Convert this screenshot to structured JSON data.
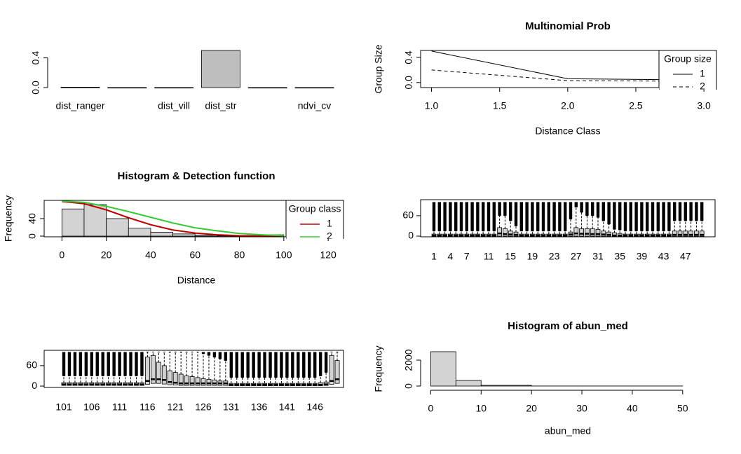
{
  "chart_data": [
    {
      "type": "bar",
      "categories": [
        "dist_ranger",
        null,
        "dist_vill",
        "dist_str",
        null,
        "ndvi_cv"
      ],
      "values": [
        0.005,
        0.001,
        0.001,
        0.5,
        0.001,
        0.001
      ],
      "color": "#bebebe",
      "ylim": [
        0,
        0.5
      ],
      "yticks": [
        {
          "value": 0,
          "label": "0.0"
        },
        {
          "value": 0.4,
          "label": "0.4"
        }
      ]
    },
    {
      "type": "line",
      "title": "Multinomial Prob",
      "xlabel": "Distance Class",
      "ylabel": "Group Size",
      "x": [
        1,
        2,
        3
      ],
      "series": [
        {
          "name": "1",
          "color": "#000000",
          "linestyle": "solid",
          "values": [
            0.5,
            0.06,
            0.04
          ]
        },
        {
          "name": "2",
          "color": "#000000",
          "linestyle": "dashed",
          "values": [
            0.2,
            0.03,
            0.02
          ]
        }
      ],
      "xlim": [
        0.92,
        2.67
      ],
      "xticks": [
        {
          "value": 1,
          "label": "1.0"
        },
        {
          "value": 1.5,
          "label": "1.5"
        },
        {
          "value": 2,
          "label": "2.0"
        },
        {
          "value": 2.5,
          "label": "2.5"
        },
        {
          "value": 3,
          "label": "3.0"
        }
      ],
      "ylim": [
        -0.08,
        0.51
      ],
      "yticks": [
        {
          "value": 0,
          "label": "0.0"
        },
        {
          "value": 0.4,
          "label": "0.4"
        }
      ],
      "legend": {
        "title": "Group size",
        "corner": "right"
      }
    },
    {
      "type": "histogram",
      "title": "Histogram & Detection function",
      "xlabel": "Distance",
      "ylabel": "Frequency",
      "bins": [
        0,
        10,
        20,
        30,
        40,
        50,
        60,
        70,
        80,
        90,
        100
      ],
      "values": [
        62,
        72,
        40,
        18,
        9,
        5,
        2,
        1,
        1,
        3
      ],
      "color": "#d3d3d3",
      "series": [
        {
          "name": "1",
          "color": "#c00000",
          "linestyle": "solid",
          "x": [
            0,
            10,
            20,
            30,
            40,
            50,
            60,
            70,
            80,
            90,
            100
          ],
          "values": [
            79,
            74,
            60,
            42,
            26,
            14,
            7,
            3,
            1,
            0.5,
            0.2
          ]
        },
        {
          "name": "2",
          "color": "#33cc33",
          "linestyle": "solid",
          "x": [
            0,
            10,
            20,
            30,
            40,
            50,
            60,
            70,
            80,
            90,
            100
          ],
          "values": [
            80,
            77,
            68,
            56,
            43,
            30,
            19,
            12,
            6,
            3,
            1
          ]
        }
      ],
      "xlim": [
        -8,
        101
      ],
      "xticks": [
        0,
        20,
        40,
        60,
        80,
        100,
        120
      ],
      "ylim": [
        -1.6,
        81.6
      ],
      "yticks": [
        0,
        40
      ],
      "legend": {
        "title": "Group class",
        "corner": "right"
      }
    },
    {
      "type": "boxplot",
      "categories": [
        "1",
        null,
        null,
        "4",
        null,
        null,
        "7",
        null,
        null,
        null,
        "11",
        null,
        null,
        null,
        "15",
        null,
        null,
        null,
        "19",
        null,
        null,
        null,
        "23",
        null,
        null,
        null,
        "27",
        null,
        null,
        null,
        "31",
        null,
        null,
        null,
        "35",
        null,
        null,
        null,
        "39",
        null,
        null,
        null,
        "43",
        null,
        null,
        null,
        "47",
        null,
        null,
        null
      ],
      "q1": [
        0,
        0,
        0,
        0,
        0,
        0,
        0,
        0,
        0,
        0,
        0,
        0,
        0,
        0,
        0,
        0,
        0,
        0,
        0,
        0,
        0,
        0,
        0,
        0,
        0,
        0,
        0,
        0,
        0,
        0,
        0,
        0,
        0,
        0,
        0,
        0,
        0,
        0,
        0,
        0,
        0,
        0,
        0,
        0,
        0,
        0,
        0,
        0,
        0,
        0
      ],
      "median": [
        2,
        2,
        2,
        2,
        2,
        2,
        2,
        2,
        2,
        2,
        2,
        2,
        8,
        6,
        5,
        4,
        2,
        2,
        2,
        2,
        2,
        2,
        2,
        2,
        2,
        5,
        8,
        7,
        7,
        6,
        6,
        5,
        4,
        2,
        2,
        2,
        2,
        2,
        2,
        2,
        2,
        2,
        2,
        2,
        4,
        4,
        4,
        4,
        4,
        4
      ],
      "q3": [
        6,
        6,
        6,
        6,
        6,
        6,
        6,
        6,
        6,
        6,
        6,
        6,
        25,
        22,
        15,
        12,
        6,
        6,
        6,
        6,
        6,
        6,
        6,
        6,
        6,
        12,
        25,
        22,
        22,
        22,
        20,
        15,
        12,
        10,
        8,
        6,
        6,
        6,
        6,
        6,
        6,
        6,
        6,
        6,
        15,
        15,
        15,
        15,
        15,
        15
      ],
      "whisker": [
        15,
        15,
        15,
        15,
        15,
        15,
        15,
        15,
        15,
        15,
        15,
        15,
        60,
        60,
        45,
        30,
        15,
        15,
        15,
        15,
        15,
        15,
        15,
        15,
        15,
        50,
        85,
        70,
        60,
        60,
        55,
        45,
        35,
        20,
        18,
        15,
        15,
        15,
        15,
        15,
        15,
        15,
        15,
        15,
        45,
        45,
        45,
        45,
        45,
        45
      ],
      "max": [
        100,
        100,
        100,
        100,
        100,
        100,
        100,
        100,
        100,
        100,
        100,
        100,
        100,
        100,
        100,
        100,
        100,
        100,
        100,
        100,
        100,
        100,
        100,
        100,
        100,
        100,
        100,
        100,
        100,
        100,
        100,
        100,
        100,
        100,
        100,
        100,
        100,
        100,
        100,
        100,
        100,
        100,
        100,
        100,
        100,
        100,
        100,
        100,
        100,
        100
      ],
      "color": "#d3d3d3",
      "ylim": [
        -2,
        107
      ],
      "yticks": [
        0,
        60
      ]
    },
    {
      "type": "boxplot",
      "categories": [
        "101",
        null,
        null,
        null,
        null,
        "106",
        null,
        null,
        null,
        null,
        "111",
        null,
        null,
        null,
        null,
        "116",
        null,
        null,
        null,
        null,
        "121",
        null,
        null,
        null,
        null,
        "126",
        null,
        null,
        null,
        null,
        "131",
        null,
        null,
        null,
        null,
        "136",
        null,
        null,
        null,
        null,
        "141",
        null,
        null,
        null,
        null,
        "146",
        null,
        null,
        null,
        null
      ],
      "q1": [
        2,
        2,
        2,
        2,
        2,
        2,
        2,
        2,
        2,
        2,
        2,
        2,
        2,
        2,
        2,
        5,
        8,
        8,
        6,
        4,
        3,
        2,
        2,
        2,
        2,
        2,
        2,
        2,
        2,
        2,
        1,
        1,
        1,
        1,
        1,
        1,
        1,
        1,
        1,
        1,
        1,
        1,
        1,
        1,
        1,
        1,
        1,
        2,
        5,
        8
      ],
      "median": [
        5,
        5,
        5,
        5,
        5,
        5,
        5,
        5,
        5,
        5,
        5,
        5,
        5,
        5,
        5,
        15,
        20,
        20,
        18,
        12,
        10,
        8,
        8,
        8,
        8,
        8,
        8,
        8,
        8,
        8,
        4,
        4,
        4,
        4,
        4,
        4,
        4,
        4,
        4,
        4,
        4,
        4,
        4,
        4,
        4,
        4,
        4,
        5,
        15,
        20
      ],
      "q3": [
        10,
        10,
        10,
        10,
        10,
        10,
        10,
        10,
        10,
        10,
        10,
        10,
        10,
        10,
        10,
        85,
        90,
        70,
        60,
        45,
        40,
        35,
        30,
        28,
        25,
        22,
        20,
        18,
        15,
        15,
        8,
        8,
        8,
        8,
        8,
        8,
        8,
        8,
        8,
        8,
        8,
        8,
        8,
        8,
        8,
        8,
        10,
        12,
        90,
        75
      ],
      "whisker": [
        30,
        30,
        30,
        30,
        30,
        30,
        30,
        30,
        30,
        30,
        30,
        30,
        30,
        30,
        30,
        100,
        100,
        100,
        100,
        100,
        100,
        100,
        100,
        100,
        100,
        95,
        90,
        85,
        80,
        75,
        25,
        25,
        25,
        25,
        25,
        25,
        25,
        25,
        25,
        25,
        25,
        25,
        25,
        25,
        25,
        25,
        30,
        40,
        100,
        100
      ],
      "max": [
        100,
        100,
        100,
        100,
        100,
        100,
        100,
        100,
        100,
        100,
        100,
        100,
        100,
        100,
        100,
        100,
        100,
        100,
        100,
        100,
        100,
        100,
        100,
        100,
        100,
        100,
        100,
        100,
        100,
        100,
        100,
        100,
        100,
        100,
        100,
        100,
        100,
        100,
        100,
        100,
        100,
        100,
        100,
        100,
        100,
        100,
        100,
        100,
        100,
        100
      ],
      "color": "#d3d3d3",
      "ylim": [
        -4,
        105
      ],
      "yticks": [
        0,
        60
      ]
    },
    {
      "type": "histogram",
      "title": "Histogram of abun_med",
      "xlabel": "abun_med",
      "ylabel": "Frequency",
      "bins": [
        0,
        5,
        10,
        20,
        50
      ],
      "values": [
        2650,
        430,
        55,
        5
      ],
      "color": "#d3d3d3",
      "xlim": [
        -2,
        54.2
      ],
      "xticks": [
        0,
        10,
        20,
        30,
        40,
        50
      ],
      "ylim": [
        -108,
        2757
      ],
      "yticks": [
        0,
        2000
      ]
    }
  ]
}
